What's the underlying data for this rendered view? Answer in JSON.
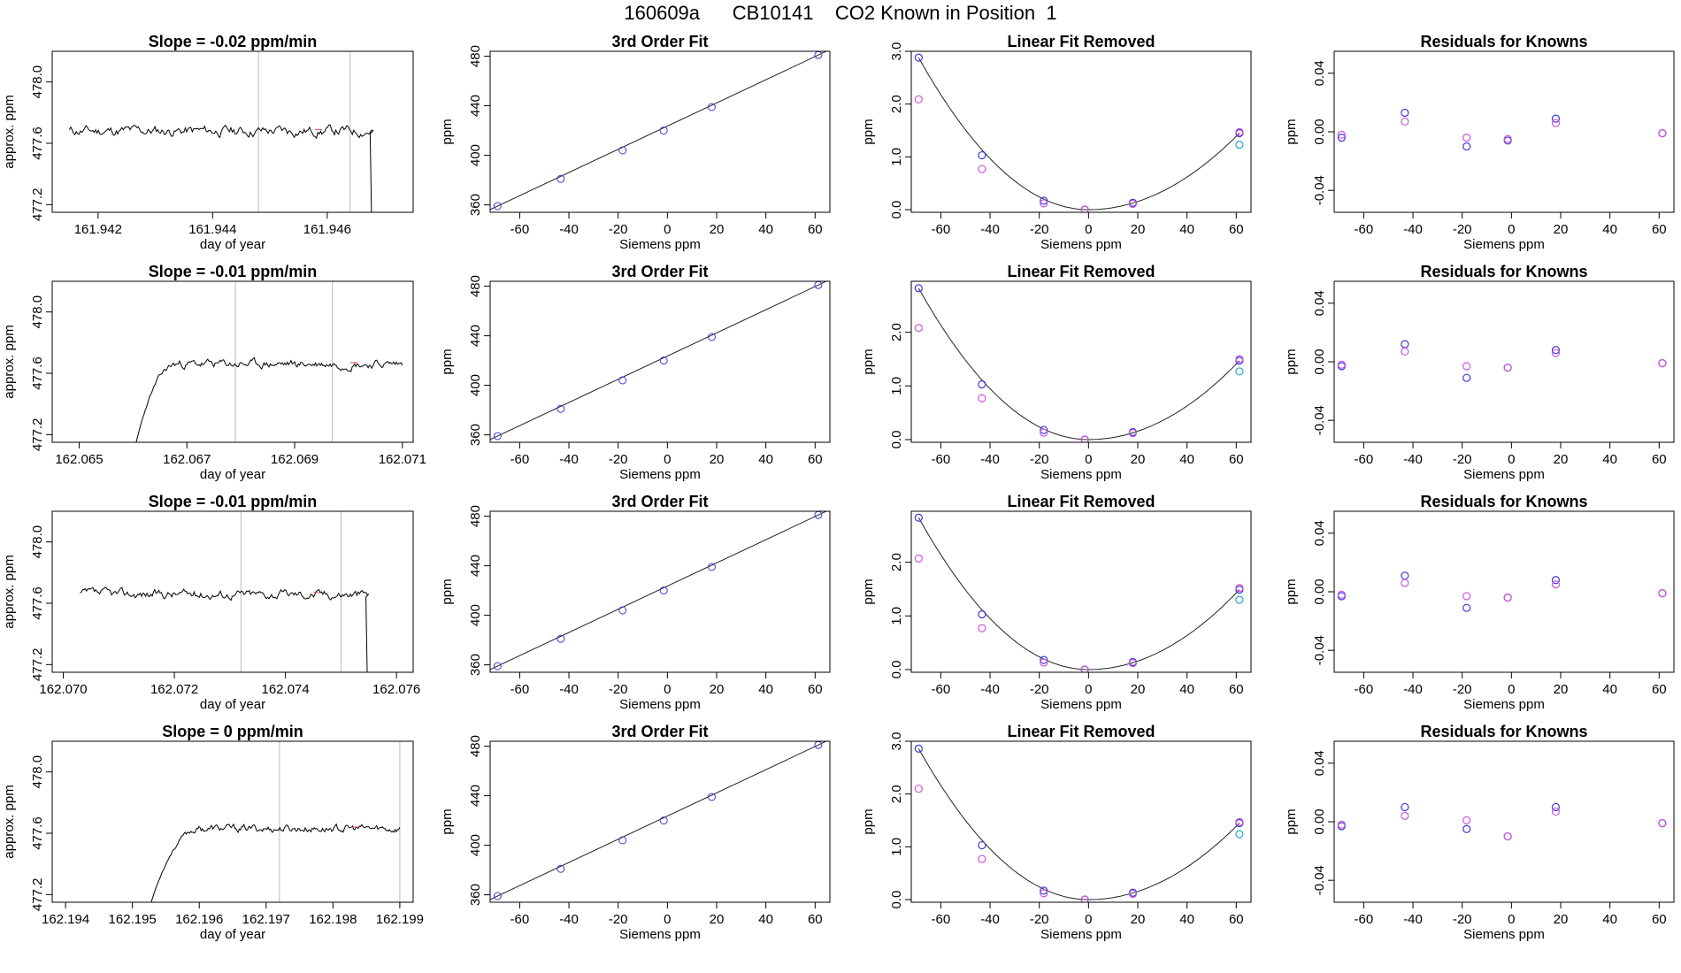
{
  "title": {
    "date": "160609a",
    "tank": "CB10141",
    "desc": "CO2 Known in Position  1"
  },
  "colors": {
    "trace": "#000000",
    "vline": "#bbbbbb",
    "fit": "#222222",
    "blue": "#3a3ad6",
    "magenta": "#cc55dd",
    "cyan": "#22aacc",
    "redmark": "#ee4444"
  },
  "chart_data": [
    {
      "type": "line",
      "title": "Slope =  -0.02  ppm/min",
      "xlabel": "day of year",
      "ylabel": "approx. ppm",
      "xlim": [
        161.9412,
        161.9475
      ],
      "ylim": [
        477.15,
        478.2
      ],
      "xticks": [
        "161.942",
        "161.944",
        "161.946"
      ],
      "xtick_values": [
        161.942,
        161.944,
        161.946
      ],
      "yticks": [
        "477.2",
        "477.6",
        "478.0"
      ],
      "ytick_values": [
        477.2,
        477.6,
        478.0
      ],
      "vlines": [
        161.9448,
        161.9464
      ],
      "trace": {
        "x0": 161.9415,
        "x1": 161.9468,
        "level": 477.68,
        "amp": 0.025,
        "seed": 11,
        "rise_until": null,
        "drop_at": 161.94675
      }
    },
    {
      "type": "line",
      "title": "3rd Order Fit",
      "xlabel": "Siemens ppm",
      "ylabel": "ppm",
      "xlim": [
        -72,
        66
      ],
      "ylim": [
        354,
        484
      ],
      "xticks": [
        "-60",
        "-40",
        "-20",
        "0",
        "20",
        "40",
        "60"
      ],
      "xtick_values": [
        -60,
        -40,
        -20,
        0,
        20,
        40,
        60
      ],
      "yticks": [
        "360",
        "400",
        "440",
        "480"
      ],
      "ytick_values": [
        360,
        400,
        440,
        480
      ],
      "x": [
        -69.0,
        -43.3,
        -18.2,
        -1.5,
        18.0,
        61.3
      ],
      "y": [
        359.0,
        381.0,
        404.0,
        420.0,
        439.0,
        481.0
      ]
    },
    {
      "type": "scatter",
      "title": "Linear Fit Removed",
      "xlabel": "Siemens ppm",
      "ylabel": "ppm",
      "xlim": [
        -72,
        66
      ],
      "ylim": [
        -0.05,
        3.0
      ],
      "xticks": [
        "-60",
        "-40",
        "-20",
        "0",
        "20",
        "40",
        "60"
      ],
      "xtick_values": [
        -60,
        -40,
        -20,
        0,
        20,
        40,
        60
      ],
      "yticks": [
        "0.0",
        "1.0",
        "2.0",
        "3.0"
      ],
      "ytick_values": [
        0.0,
        1.0,
        2.0,
        3.0
      ],
      "x": [
        -69.0,
        -43.3,
        -18.2,
        -1.5,
        18.0,
        61.3
      ],
      "series": [
        {
          "color": "blue",
          "values": [
            2.88,
            1.03,
            0.17,
            0.0,
            0.13,
            1.45
          ]
        },
        {
          "color": "magenta",
          "values": [
            2.09,
            0.77,
            0.12,
            0.0,
            0.11,
            1.47
          ]
        },
        {
          "color": "cyan",
          "values": [
            null,
            null,
            null,
            null,
            null,
            1.23
          ]
        }
      ]
    },
    {
      "type": "scatter",
      "title": "Residuals for Knowns",
      "xlabel": "Siemens ppm",
      "ylabel": "ppm",
      "xlim": [
        -72,
        66
      ],
      "ylim": [
        -0.055,
        0.055
      ],
      "xticks": [
        "-60",
        "-40",
        "-20",
        "0",
        "20",
        "40",
        "60"
      ],
      "xtick_values": [
        -60,
        -40,
        -20,
        0,
        20,
        40,
        60
      ],
      "yticks": [
        "-0.04",
        "0.00",
        "0.04"
      ],
      "ytick_values": [
        -0.04,
        0.0,
        0.04
      ],
      "x": [
        -69.0,
        -43.3,
        -18.2,
        -1.5,
        18.0,
        61.3
      ],
      "series": [
        {
          "color": "blue",
          "values": [
            -0.004,
            0.013,
            -0.01,
            -0.006,
            0.009,
            -0.001
          ]
        },
        {
          "color": "magenta",
          "values": [
            -0.002,
            0.007,
            -0.004,
            -0.005,
            0.006,
            -0.001
          ]
        }
      ]
    },
    {
      "type": "line",
      "title": "Slope =  -0.01  ppm/min",
      "xlabel": "day of year",
      "ylabel": "approx. ppm",
      "xlim": [
        162.0645,
        162.0712
      ],
      "ylim": [
        477.15,
        478.2
      ],
      "xticks": [
        "162.065",
        "162.067",
        "162.069",
        "162.071"
      ],
      "xtick_values": [
        162.065,
        162.067,
        162.069,
        162.071
      ],
      "yticks": [
        "477.2",
        "477.6",
        "478.0"
      ],
      "ytick_values": [
        477.2,
        477.6,
        478.0
      ],
      "vlines": [
        162.0679,
        162.0697
      ],
      "trace": {
        "x0": 162.066,
        "x1": 162.071,
        "level": 477.66,
        "amp": 0.02,
        "seed": 23,
        "rise_until": 162.0668,
        "drop_at": null
      }
    },
    {
      "type": "line",
      "title": "3rd Order Fit",
      "xlabel": "Siemens ppm",
      "ylabel": "ppm",
      "xlim": [
        -72,
        66
      ],
      "ylim": [
        354,
        484
      ],
      "xticks": [
        "-60",
        "-40",
        "-20",
        "0",
        "20",
        "40",
        "60"
      ],
      "xtick_values": [
        -60,
        -40,
        -20,
        0,
        20,
        40,
        60
      ],
      "yticks": [
        "360",
        "400",
        "440",
        "480"
      ],
      "ytick_values": [
        360,
        400,
        440,
        480
      ],
      "x": [
        -69.0,
        -43.3,
        -18.2,
        -1.5,
        18.0,
        61.3
      ],
      "y": [
        359.0,
        381.0,
        404.0,
        420.0,
        439.0,
        481.0
      ]
    },
    {
      "type": "scatter",
      "title": "Linear Fit Removed",
      "xlabel": "Siemens ppm",
      "ylabel": "ppm",
      "xlim": [
        -72,
        66
      ],
      "ylim": [
        -0.05,
        2.95
      ],
      "xticks": [
        "-60",
        "-40",
        "-20",
        "0",
        "20",
        "40",
        "60"
      ],
      "xtick_values": [
        -60,
        -40,
        -20,
        0,
        20,
        40,
        60
      ],
      "yticks": [
        "0.0",
        "1.0",
        "2.0"
      ],
      "ytick_values": [
        0.0,
        1.0,
        2.0
      ],
      "x": [
        -69.0,
        -43.3,
        -18.2,
        -1.5,
        18.0,
        61.3
      ],
      "series": [
        {
          "color": "blue",
          "values": [
            2.82,
            1.03,
            0.18,
            0.0,
            0.14,
            1.47
          ]
        },
        {
          "color": "magenta",
          "values": [
            2.08,
            0.77,
            0.13,
            0.0,
            0.12,
            1.5
          ]
        },
        {
          "color": "cyan",
          "values": [
            null,
            null,
            null,
            null,
            null,
            1.27
          ]
        }
      ]
    },
    {
      "type": "scatter",
      "title": "Residuals for Knowns",
      "xlabel": "Siemens ppm",
      "ylabel": "ppm",
      "xlim": [
        -72,
        66
      ],
      "ylim": [
        -0.055,
        0.055
      ],
      "xticks": [
        "-60",
        "-40",
        "-20",
        "0",
        "20",
        "40",
        "60"
      ],
      "xtick_values": [
        -60,
        -40,
        -20,
        0,
        20,
        40,
        60
      ],
      "yticks": [
        "-0.04",
        "0.00",
        "0.04"
      ],
      "ytick_values": [
        -0.04,
        0.0,
        0.04
      ],
      "x": [
        -69.0,
        -43.3,
        -18.2,
        -1.5,
        18.0,
        61.3
      ],
      "series": [
        {
          "color": "blue",
          "values": [
            -0.003,
            0.012,
            -0.011,
            -0.004,
            0.008,
            -0.001
          ]
        },
        {
          "color": "magenta",
          "values": [
            -0.002,
            0.007,
            -0.003,
            -0.004,
            0.006,
            -0.001
          ]
        }
      ]
    },
    {
      "type": "line",
      "title": "Slope =  -0.01  ppm/min",
      "xlabel": "day of year",
      "ylabel": "approx. ppm",
      "xlim": [
        162.0698,
        162.0763
      ],
      "ylim": [
        477.15,
        478.2
      ],
      "xticks": [
        "162.070",
        "162.072",
        "162.074",
        "162.076"
      ],
      "xtick_values": [
        162.07,
        162.072,
        162.074,
        162.076
      ],
      "yticks": [
        "477.2",
        "477.6",
        "478.0"
      ],
      "ytick_values": [
        477.2,
        477.6,
        478.0
      ],
      "vlines": [
        162.0732,
        162.075
      ],
      "trace": {
        "x0": 162.0703,
        "x1": 162.0755,
        "level": 477.66,
        "amp": 0.022,
        "seed": 37,
        "rise_until": null,
        "drop_at": 162.07545
      }
    },
    {
      "type": "line",
      "title": "3rd Order Fit",
      "xlabel": "Siemens ppm",
      "ylabel": "ppm",
      "xlim": [
        -72,
        66
      ],
      "ylim": [
        354,
        484
      ],
      "xticks": [
        "-60",
        "-40",
        "-20",
        "0",
        "20",
        "40",
        "60"
      ],
      "xtick_values": [
        -60,
        -40,
        -20,
        0,
        20,
        40,
        60
      ],
      "yticks": [
        "360",
        "400",
        "440",
        "480"
      ],
      "ytick_values": [
        360,
        400,
        440,
        480
      ],
      "x": [
        -69.0,
        -43.3,
        -18.2,
        -1.5,
        18.0,
        61.3
      ],
      "y": [
        359.0,
        381.0,
        404.0,
        420.0,
        439.0,
        481.0
      ]
    },
    {
      "type": "scatter",
      "title": "Linear Fit Removed",
      "xlabel": "Siemens ppm",
      "ylabel": "ppm",
      "xlim": [
        -72,
        66
      ],
      "ylim": [
        -0.05,
        2.95
      ],
      "xticks": [
        "-60",
        "-40",
        "-20",
        "0",
        "20",
        "40",
        "60"
      ],
      "xtick_values": [
        -60,
        -40,
        -20,
        0,
        20,
        40,
        60
      ],
      "yticks": [
        "0.0",
        "1.0",
        "2.0"
      ],
      "ytick_values": [
        0.0,
        1.0,
        2.0
      ],
      "x": [
        -69.0,
        -43.3,
        -18.2,
        -1.5,
        18.0,
        61.3
      ],
      "series": [
        {
          "color": "blue",
          "values": [
            2.83,
            1.03,
            0.18,
            0.0,
            0.14,
            1.49
          ]
        },
        {
          "color": "magenta",
          "values": [
            2.07,
            0.77,
            0.13,
            0.0,
            0.12,
            1.52
          ]
        },
        {
          "color": "cyan",
          "values": [
            null,
            null,
            null,
            null,
            null,
            1.3
          ]
        }
      ]
    },
    {
      "type": "scatter",
      "title": "Residuals for Knowns",
      "xlabel": "Siemens ppm",
      "ylabel": "ppm",
      "xlim": [
        -72,
        66
      ],
      "ylim": [
        -0.055,
        0.055
      ],
      "xticks": [
        "-60",
        "-40",
        "-20",
        "0",
        "20",
        "40",
        "60"
      ],
      "xtick_values": [
        -60,
        -40,
        -20,
        0,
        20,
        40,
        60
      ],
      "yticks": [
        "-0.04",
        "0.00",
        "0.04"
      ],
      "ytick_values": [
        -0.04,
        0.0,
        0.04
      ],
      "x": [
        -69.0,
        -43.3,
        -18.2,
        -1.5,
        18.0,
        61.3
      ],
      "series": [
        {
          "color": "blue",
          "values": [
            -0.003,
            0.011,
            -0.011,
            -0.004,
            0.008,
            -0.001
          ]
        },
        {
          "color": "magenta",
          "values": [
            -0.002,
            0.006,
            -0.003,
            -0.004,
            0.005,
            -0.001
          ]
        }
      ]
    },
    {
      "type": "line",
      "title": "Slope =  0  ppm/min",
      "xlabel": "day of year",
      "ylabel": "approx. ppm",
      "xlim": [
        162.1938,
        162.1992
      ],
      "ylim": [
        477.15,
        478.2
      ],
      "xticks": [
        "162.194",
        "162.195",
        "162.196",
        "162.197",
        "162.198",
        "162.199"
      ],
      "xtick_values": [
        162.194,
        162.195,
        162.196,
        162.197,
        162.198,
        162.199
      ],
      "yticks": [
        "477.2",
        "477.6",
        "478.0"
      ],
      "ytick_values": [
        477.2,
        477.6,
        478.0
      ],
      "vlines": [
        162.1972,
        162.199
      ],
      "trace": {
        "x0": 162.1952,
        "x1": 162.199,
        "level": 477.63,
        "amp": 0.018,
        "seed": 53,
        "rise_until": 162.196,
        "drop_at": null
      }
    },
    {
      "type": "line",
      "title": "3rd Order Fit",
      "xlabel": "Siemens ppm",
      "ylabel": "ppm",
      "xlim": [
        -72,
        66
      ],
      "ylim": [
        354,
        484
      ],
      "xticks": [
        "-60",
        "-40",
        "-20",
        "0",
        "20",
        "40",
        "60"
      ],
      "xtick_values": [
        -60,
        -40,
        -20,
        0,
        20,
        40,
        60
      ],
      "yticks": [
        "360",
        "400",
        "440",
        "480"
      ],
      "ytick_values": [
        360,
        400,
        440,
        480
      ],
      "x": [
        -69.0,
        -43.3,
        -18.2,
        -1.5,
        18.0,
        61.3
      ],
      "y": [
        359.0,
        381.0,
        404.0,
        420.0,
        439.0,
        481.0
      ]
    },
    {
      "type": "scatter",
      "title": "Linear Fit Removed",
      "xlabel": "Siemens ppm",
      "ylabel": "ppm",
      "xlim": [
        -72,
        66
      ],
      "ylim": [
        -0.05,
        3.0
      ],
      "xticks": [
        "-60",
        "-40",
        "-20",
        "0",
        "20",
        "40",
        "60"
      ],
      "xtick_values": [
        -60,
        -40,
        -20,
        0,
        20,
        40,
        60
      ],
      "yticks": [
        "0.0",
        "1.0",
        "2.0",
        "3.0"
      ],
      "ytick_values": [
        0.0,
        1.0,
        2.0,
        3.0
      ],
      "x": [
        -69.0,
        -43.3,
        -18.2,
        -1.5,
        18.0,
        61.3
      ],
      "series": [
        {
          "color": "blue",
          "values": [
            2.86,
            1.03,
            0.17,
            0.0,
            0.13,
            1.45
          ]
        },
        {
          "color": "magenta",
          "values": [
            2.1,
            0.77,
            0.12,
            0.0,
            0.11,
            1.47
          ]
        },
        {
          "color": "cyan",
          "values": [
            null,
            null,
            null,
            null,
            null,
            1.24
          ]
        }
      ]
    },
    {
      "type": "scatter",
      "title": "Residuals for Knowns",
      "xlabel": "Siemens ppm",
      "ylabel": "ppm",
      "xlim": [
        -72,
        66
      ],
      "ylim": [
        -0.055,
        0.055
      ],
      "xticks": [
        "-60",
        "-40",
        "-20",
        "0",
        "20",
        "40",
        "60"
      ],
      "xtick_values": [
        -60,
        -40,
        -20,
        0,
        20,
        40,
        60
      ],
      "yticks": [
        "-0.04",
        "0.00",
        "0.04"
      ],
      "ytick_values": [
        -0.04,
        0.0,
        0.04
      ],
      "x": [
        -69.0,
        -43.3,
        -18.2,
        -1.5,
        18.0,
        61.3
      ],
      "series": [
        {
          "color": "blue",
          "values": [
            -0.003,
            0.01,
            -0.005,
            -0.01,
            0.01,
            -0.001
          ]
        },
        {
          "color": "magenta",
          "values": [
            -0.002,
            0.004,
            0.001,
            -0.01,
            0.007,
            -0.001
          ]
        }
      ]
    }
  ]
}
